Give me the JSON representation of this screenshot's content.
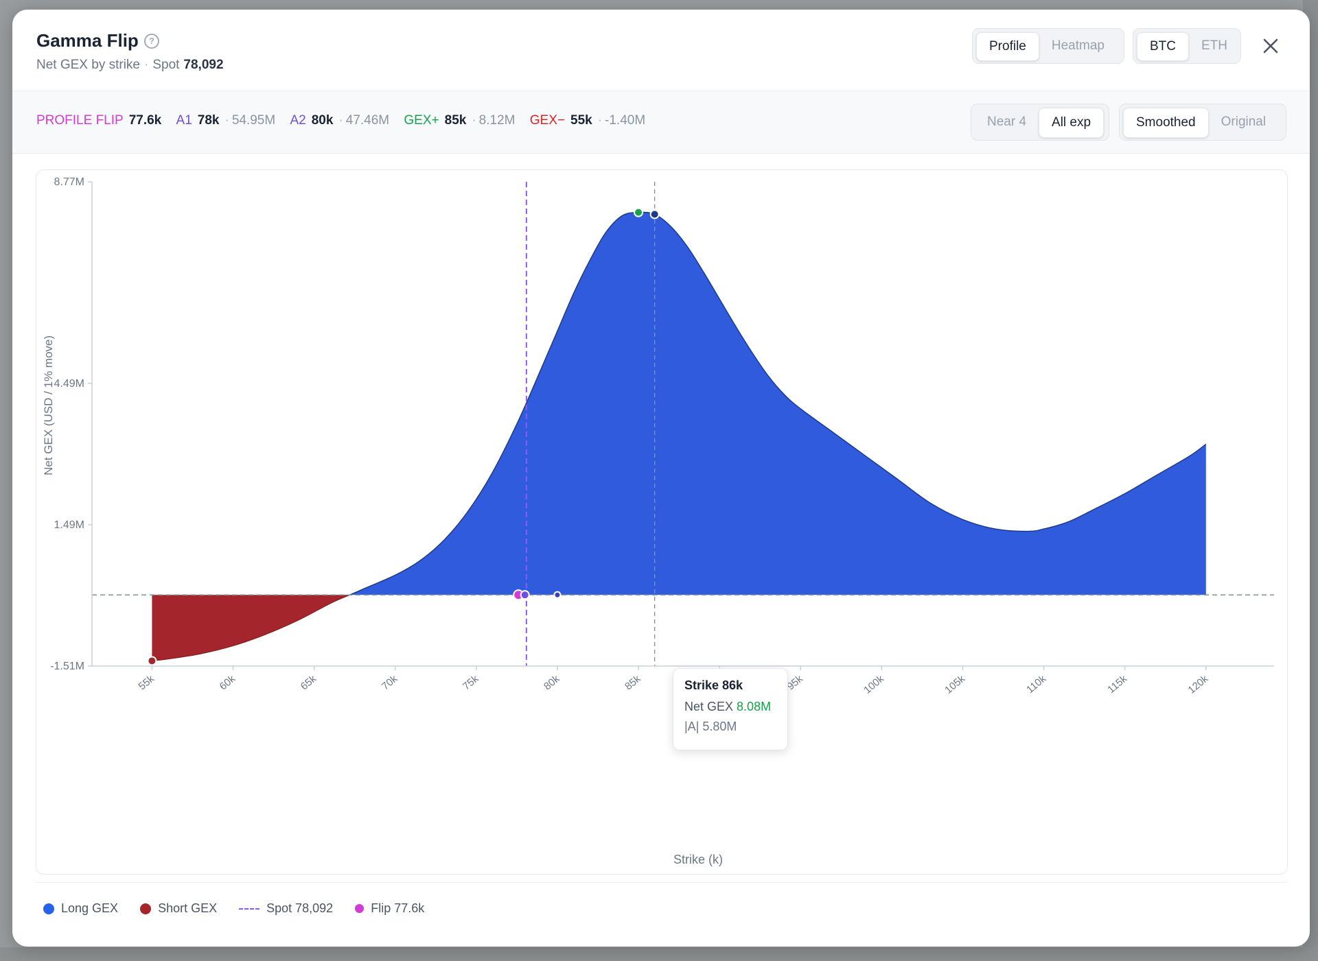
{
  "header": {
    "title": "Gamma Flip",
    "subtitle_label": "Net GEX by strike",
    "spot_label": "Spot",
    "spot_value": "78,092",
    "view_tabs": [
      "Profile",
      "Heatmap"
    ],
    "asset_tabs": [
      "BTC",
      "ETH"
    ]
  },
  "stats": {
    "flip_label": "PROFILE FLIP",
    "flip_value": "77.6k",
    "a1_label": "A1",
    "a1_value": "78k",
    "a1_sub": "54.95M",
    "a2_label": "A2",
    "a2_value": "80k",
    "a2_sub": "47.46M",
    "gexp_label": "GEX+",
    "gexp_value": "85k",
    "gexp_sub": "8.12M",
    "gexm_label": "GEX−",
    "gexm_value": "55k",
    "gexm_sub": "-1.40M",
    "exp_tabs": [
      "Near 4",
      "All exp"
    ],
    "mode_tabs": [
      "Smoothed",
      "Original"
    ]
  },
  "tooltip": {
    "strike": "Strike 86k",
    "net_label": "Net GEX",
    "net_value": "8.08M",
    "abs_label": "|A| 5.80M"
  },
  "legend": {
    "long": "Long GEX",
    "short": "Short GEX",
    "spot": "Spot 78,092",
    "flip": "Flip 77.6k"
  },
  "colors": {
    "long": "#2f5bdc",
    "short": "#a4262c",
    "spot": "#8b5cf6",
    "flip": "#d43ad6",
    "gex_plus": "#16a34a",
    "gex_minus": "#dc2626",
    "a": "#6d4fe0"
  },
  "chart_data": {
    "type": "area",
    "xlabel": "Strike (k)",
    "ylabel": "Net GEX (USD / 1% move)",
    "x_ticks": [
      "55k",
      "60k",
      "65k",
      "70k",
      "75k",
      "80k",
      "85k",
      "90k",
      "95k",
      "100k",
      "105k",
      "110k",
      "115k",
      "120k"
    ],
    "y_ticks": [
      "8.77M",
      "4.49M",
      "1.49M",
      "-1.51M"
    ],
    "xlim": [
      51.3,
      124.2
    ],
    "ylim": [
      -1.51,
      8.77
    ],
    "spot": 78.092,
    "flip": 77.6,
    "tooltip_strike": 86,
    "series": [
      {
        "x": [
          55,
          56,
          58,
          60,
          62,
          64,
          66,
          67.2,
          68,
          70,
          71.5,
          73,
          74.5,
          76,
          77.6,
          79,
          80,
          81,
          82,
          83,
          84,
          85,
          86,
          87,
          88,
          89,
          90,
          91,
          92,
          93,
          94,
          95,
          97,
          99,
          101,
          103,
          105,
          107,
          109,
          110,
          111.5,
          113,
          115,
          117,
          119,
          120
        ],
        "y": [
          -1.4,
          -1.36,
          -1.25,
          -1.08,
          -0.84,
          -0.54,
          -0.18,
          0.0,
          0.12,
          0.42,
          0.72,
          1.16,
          1.78,
          2.6,
          3.7,
          4.8,
          5.6,
          6.4,
          7.1,
          7.7,
          8.05,
          8.12,
          8.08,
          7.82,
          7.4,
          6.86,
          6.28,
          5.7,
          5.15,
          4.65,
          4.25,
          3.95,
          3.45,
          2.95,
          2.45,
          1.95,
          1.6,
          1.4,
          1.35,
          1.4,
          1.55,
          1.8,
          2.15,
          2.55,
          2.95,
          3.2
        ]
      }
    ],
    "markers": {
      "gex_plus": [
        85,
        8.12
      ],
      "peak_abs": [
        86,
        8.08
      ],
      "gex_minus": [
        55,
        -1.4
      ],
      "a1": [
        78,
        0
      ],
      "a2": [
        80,
        0
      ]
    }
  }
}
